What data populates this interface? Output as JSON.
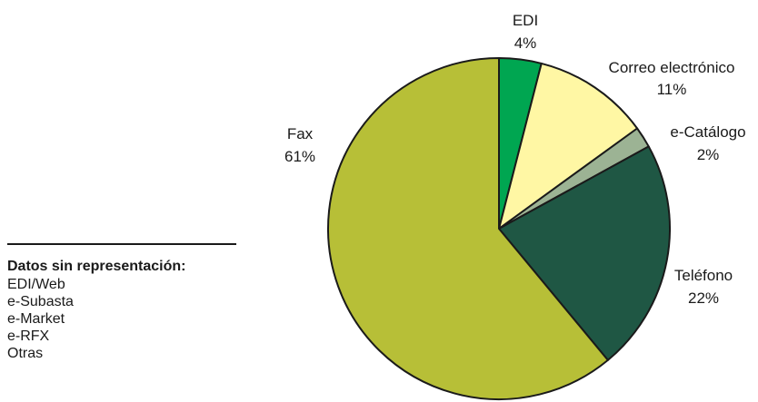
{
  "chart_data": {
    "type": "pie",
    "start": "top-center, clockwise",
    "slices": [
      {
        "name": "EDI",
        "value": 4,
        "label": "4%",
        "color": "#00a651"
      },
      {
        "name": "Correo electrónico",
        "value": 11,
        "label": "11%",
        "color": "#fff7a4"
      },
      {
        "name": "e-Catálogo",
        "value": 2,
        "label": "2%",
        "color": "#9cb394"
      },
      {
        "name": "Teléfono",
        "value": 22,
        "label": "22%",
        "color": "#1f5744"
      },
      {
        "name": "Fax",
        "value": 61,
        "label": "61%",
        "color": "#b7bf37"
      }
    ],
    "outline_color": "#1a1a1a"
  },
  "notes": {
    "title": "Datos sin representación:",
    "items": [
      "EDI/Web",
      "e-Subasta",
      "e-Market",
      "e-RFX",
      "Otras"
    ]
  }
}
